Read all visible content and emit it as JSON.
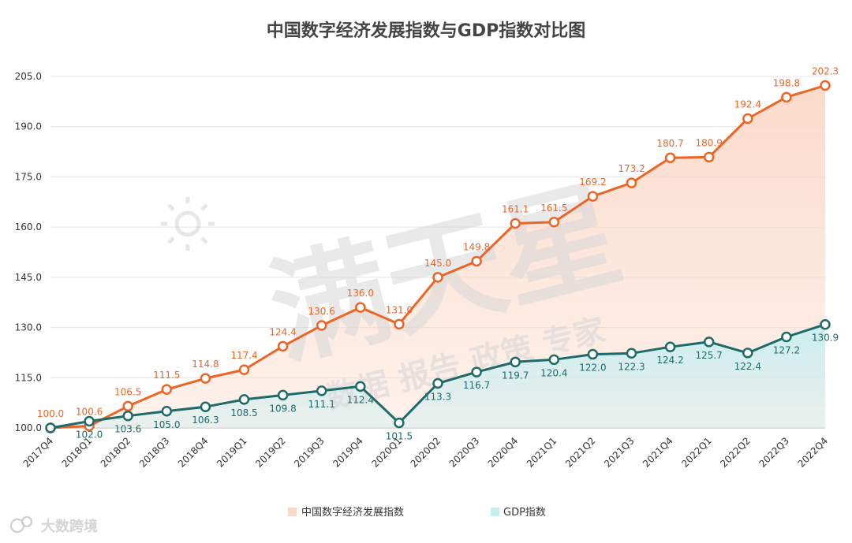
{
  "chart_data": {
    "type": "area",
    "title": "中国数字经济发展指数与GDP指数对比图",
    "categories": [
      "2017Q4",
      "2018Q1",
      "2018Q2",
      "2018Q3",
      "2018Q4",
      "2019Q1",
      "2019Q2",
      "2019Q3",
      "2019Q4",
      "2020Q1",
      "2020Q2",
      "2020Q3",
      "2020Q4",
      "2021Q1",
      "2021Q2",
      "2021Q3",
      "2021Q4",
      "2022Q1",
      "2022Q2",
      "2022Q3",
      "2022Q4"
    ],
    "series": [
      {
        "name": "中国数字经济发展指数",
        "color": "#ec6524",
        "fill": "#fbd9c8",
        "values": [
          100.0,
          100.6,
          106.5,
          111.5,
          114.8,
          117.4,
          124.4,
          130.6,
          136.0,
          131.0,
          145.0,
          149.8,
          161.1,
          161.5,
          169.2,
          173.2,
          180.7,
          180.9,
          192.4,
          198.8,
          202.3
        ],
        "labels": [
          "100.0",
          "100.6",
          "106.5",
          "111.5",
          "114.8",
          "117.4",
          "124.4",
          "130.6",
          "136.0",
          "131.0",
          "145.0",
          "149.8",
          "161.1",
          "161.5",
          "169.2",
          "173.2",
          "180.7",
          "180.9",
          "192.4",
          "198.8",
          "202.3"
        ]
      },
      {
        "name": "GDP指数",
        "color": "#1e6a6a",
        "fill": "#c9eef0",
        "values": [
          100.0,
          102.0,
          103.6,
          105.0,
          106.3,
          108.5,
          109.8,
          111.1,
          112.4,
          101.5,
          113.3,
          116.7,
          119.7,
          120.4,
          122.0,
          122.3,
          124.2,
          125.7,
          122.4,
          127.2,
          130.9
        ],
        "labels": [
          "",
          "102.0",
          "103.6",
          "105.0",
          "106.3",
          "108.5",
          "109.8",
          "111.1",
          "112.4",
          "101.5",
          "113.3",
          "116.7",
          "119.7",
          "120.4",
          "122.0",
          "122.3",
          "124.2",
          "125.7",
          "122.4",
          "127.2",
          "130.9"
        ]
      }
    ],
    "ylim": [
      100,
      205
    ],
    "yticks": [
      "100.0",
      "115.0",
      "130.0",
      "145.0",
      "160.0",
      "175.0",
      "190.0",
      "205.0"
    ],
    "grid": true,
    "legend_position": "bottom"
  },
  "watermark": {
    "main": "满天星",
    "sub": "数据 报告 政策 专家",
    "brand": "大数跨境"
  }
}
